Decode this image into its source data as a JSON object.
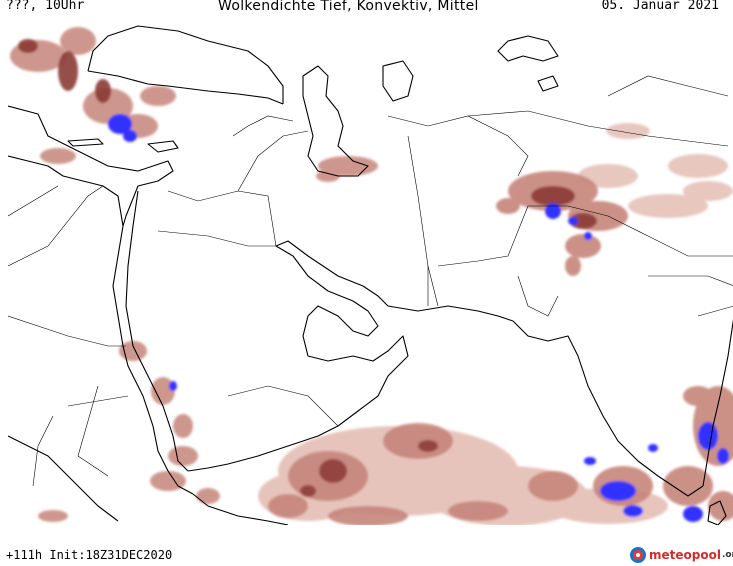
{
  "header": {
    "left": "???, 10Uhr",
    "title": "Wolkendichte  Tief, Konvektiv, Mittel",
    "date": "05. Januar 2021"
  },
  "footer": {
    "run_info": "+111h Init:18Z31DEC2020",
    "logo_text": "meteopool",
    "logo_tld": ".org"
  },
  "map": {
    "colors": {
      "cloud_light": "#e6c1b8",
      "cloud_mid": "#c6857a",
      "cloud_dark": "#8b3a34",
      "convective": "#3333ff",
      "coastline": "#000000",
      "border": "#000000"
    }
  }
}
